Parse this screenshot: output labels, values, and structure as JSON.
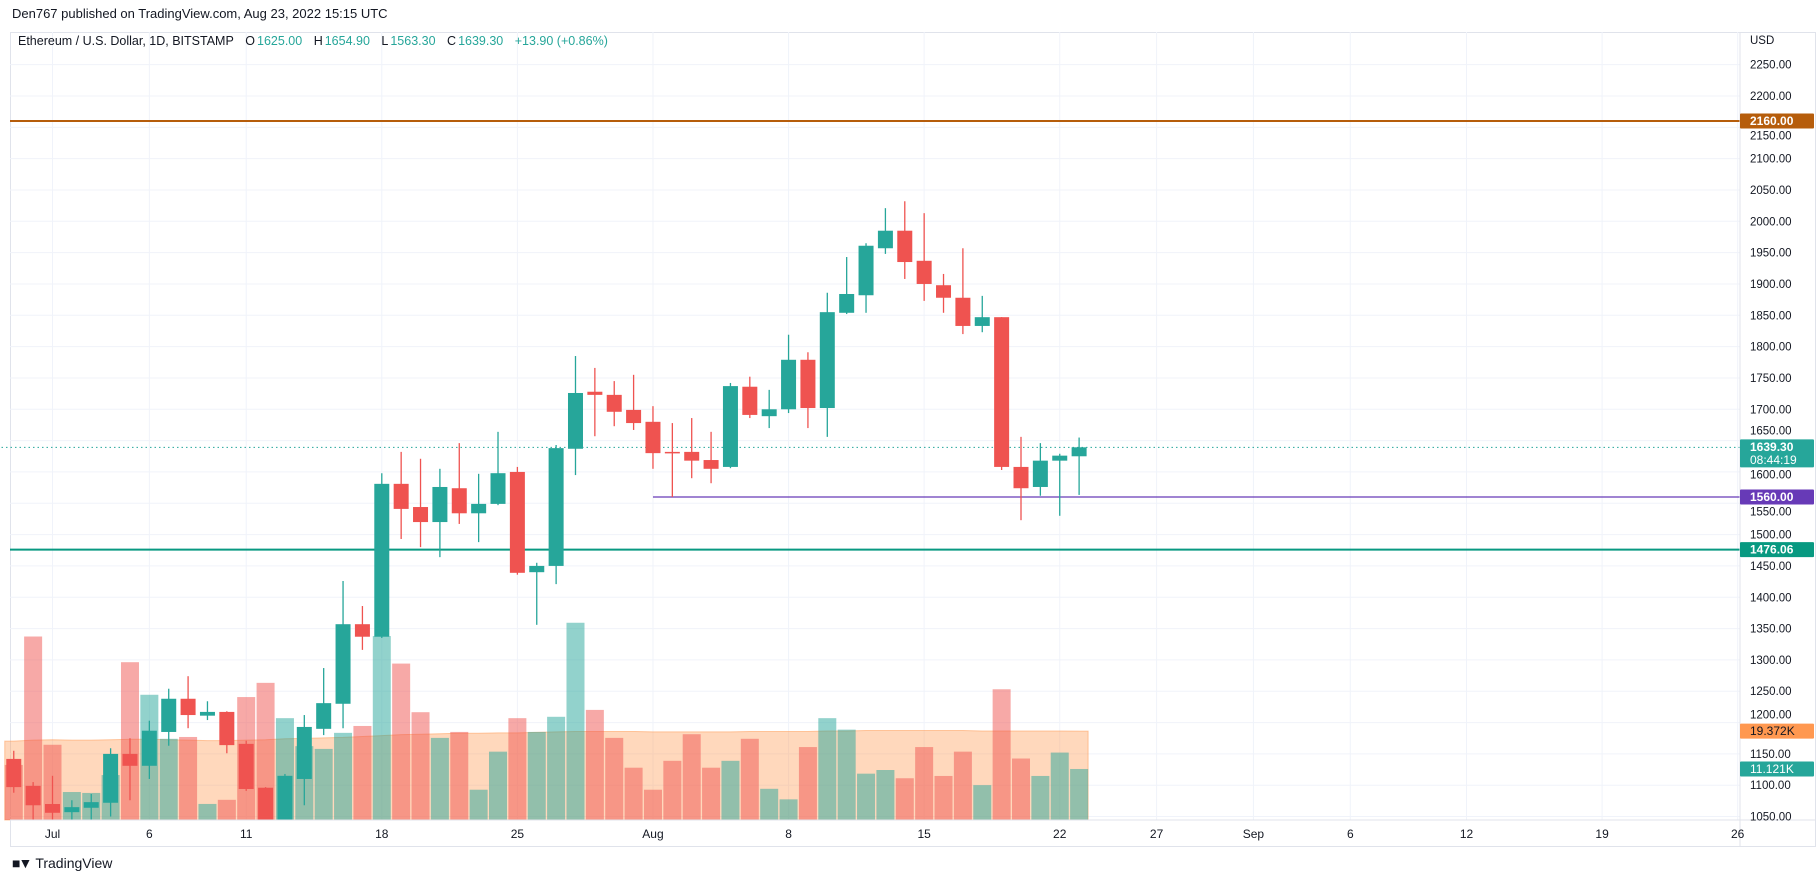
{
  "header": {
    "publisher": "Den767 published on TradingView.com, Aug 23, 2022 15:15 UTC"
  },
  "legend": {
    "symbol": "Ethereum / U.S. Dollar, 1D, BITSTAMP",
    "o_label": "O",
    "o": "1625.00",
    "h_label": "H",
    "h": "1654.90",
    "l_label": "L",
    "l": "1563.30",
    "c_label": "C",
    "c": "1639.30",
    "change": "+13.90 (+0.86%)"
  },
  "axis": {
    "currency": "USD"
  },
  "footer": {
    "brand": "TradingView"
  },
  "colors": {
    "up": "#26a69a",
    "down": "#ef5350",
    "level_2160": "#b65d0b",
    "level_1560": "#673ab7",
    "level_1476": "#089981",
    "volume_ma": "#ff9850"
  },
  "price_labels": [
    {
      "value": 2160.0,
      "text": "2160.00",
      "color": "#b65d0b"
    },
    {
      "value": 1639.3,
      "text": "1639.30",
      "sub": "08:44:19",
      "color": "#26a69a"
    },
    {
      "value": 1560.0,
      "text": "1560.00",
      "color": "#673ab7"
    },
    {
      "value": 1476.06,
      "text": "1476.06",
      "color": "#089981"
    }
  ],
  "volume_labels": [
    {
      "value": 19.372,
      "text": "19.372K",
      "color": "#ff9850"
    },
    {
      "value": 11.121,
      "text": "11.121K",
      "color": "#26a69a"
    }
  ],
  "chart_data": {
    "type": "bar",
    "style": "candlestick",
    "title": "Ethereum / U.S. Dollar, 1D, BITSTAMP",
    "ylabel": "USD",
    "ylim": [
      1030,
      2290
    ],
    "yticks": [
      "2250.00",
      "2200.00",
      "2150.00",
      "2100.00",
      "2050.00",
      "2000.00",
      "1950.00",
      "1900.00",
      "1850.00",
      "1800.00",
      "1750.00",
      "1700.00",
      "1650.00",
      "1600.00",
      "1550.00",
      "1500.00",
      "1450.00",
      "1400.00",
      "1350.00",
      "1300.00",
      "1250.00",
      "1200.00",
      "1150.00",
      "1100.00",
      "1050.00"
    ],
    "xticks": [
      {
        "day": 0,
        "label": "Jul"
      },
      {
        "day": 5,
        "label": "6"
      },
      {
        "day": 10,
        "label": "11"
      },
      {
        "day": 17,
        "label": "18"
      },
      {
        "day": 24,
        "label": "25"
      },
      {
        "day": 31,
        "label": "Aug"
      },
      {
        "day": 38,
        "label": "8"
      },
      {
        "day": 45,
        "label": "15"
      },
      {
        "day": 52,
        "label": "22"
      },
      {
        "day": 57,
        "label": "27"
      },
      {
        "day": 62,
        "label": "Sep"
      },
      {
        "day": 67,
        "label": "6"
      },
      {
        "day": 73,
        "label": "12"
      },
      {
        "day": 80,
        "label": "19"
      },
      {
        "day": 87,
        "label": "26"
      }
    ],
    "horizontal_levels": [
      {
        "price": 2160.0,
        "from_day": null
      },
      {
        "price": 1560.0,
        "from_day": 31
      },
      {
        "price": 1476.06,
        "from_day": null
      }
    ],
    "last_price": 1639.3,
    "start_day": -2,
    "ohlc": [
      [
        1142,
        1155,
        1088,
        1097
      ],
      [
        1099,
        1105,
        1020,
        1068
      ],
      [
        1070,
        1115,
        1010,
        1056
      ],
      [
        1057,
        1076,
        1030,
        1065
      ],
      [
        1064,
        1086,
        1040,
        1073
      ],
      [
        1072,
        1159,
        1050,
        1150
      ],
      [
        1150,
        1175,
        1076,
        1131
      ],
      [
        1131,
        1203,
        1110,
        1187
      ],
      [
        1185,
        1254,
        1163,
        1238
      ],
      [
        1238,
        1274,
        1191,
        1212
      ],
      [
        1211,
        1234,
        1204,
        1217
      ],
      [
        1217,
        1218,
        1151,
        1164
      ],
      [
        1166,
        1171,
        1091,
        1094
      ],
      [
        1096,
        1097,
        1030,
        1038
      ],
      [
        1038,
        1118,
        1005,
        1115
      ],
      [
        1110,
        1212,
        1068,
        1193
      ],
      [
        1190,
        1287,
        1180,
        1231
      ],
      [
        1230,
        1426,
        1191,
        1357
      ],
      [
        1357,
        1386,
        1316,
        1337
      ],
      [
        1337,
        1598,
        1335,
        1581
      ],
      [
        1581,
        1632,
        1493,
        1541
      ],
      [
        1544,
        1621,
        1480,
        1520
      ],
      [
        1520,
        1605,
        1464,
        1576
      ],
      [
        1574,
        1646,
        1517,
        1534
      ],
      [
        1534,
        1597,
        1488,
        1549
      ],
      [
        1549,
        1664,
        1547,
        1598
      ],
      [
        1600,
        1608,
        1436,
        1439
      ],
      [
        1440,
        1455,
        1356,
        1450
      ],
      [
        1450,
        1643,
        1421,
        1638
      ],
      [
        1637,
        1785,
        1595,
        1726
      ],
      [
        1728,
        1766,
        1657,
        1723
      ],
      [
        1723,
        1745,
        1673,
        1696
      ],
      [
        1699,
        1755,
        1667,
        1678
      ],
      [
        1680,
        1705,
        1605,
        1630
      ],
      [
        1632,
        1678,
        1560,
        1630
      ],
      [
        1632,
        1686,
        1590,
        1618
      ],
      [
        1619,
        1664,
        1582,
        1605
      ],
      [
        1608,
        1742,
        1606,
        1737
      ],
      [
        1736,
        1752,
        1686,
        1691
      ],
      [
        1689,
        1731,
        1670,
        1700
      ],
      [
        1700,
        1819,
        1694,
        1779
      ],
      [
        1779,
        1791,
        1670,
        1702
      ],
      [
        1702,
        1886,
        1656,
        1855
      ],
      [
        1854,
        1943,
        1852,
        1884
      ],
      [
        1882,
        1965,
        1854,
        1961
      ],
      [
        1957,
        2021,
        1948,
        1985
      ],
      [
        1985,
        2032,
        1908,
        1935
      ],
      [
        1937,
        2013,
        1873,
        1900
      ],
      [
        1898,
        1916,
        1854,
        1878
      ],
      [
        1878,
        1957,
        1820,
        1833
      ],
      [
        1833,
        1881,
        1823,
        1847
      ],
      [
        1847,
        1847,
        1603,
        1608
      ],
      [
        1608,
        1656,
        1523,
        1574
      ],
      [
        1576,
        1646,
        1562,
        1618
      ],
      [
        1618,
        1629,
        1530,
        1626
      ],
      [
        1625,
        1654.9,
        1563.3,
        1639.3
      ]
    ],
    "volume_k": [
      12.0,
      40.0,
      16.4,
      6.1,
      5.9,
      9.8,
      34.4,
      27.3,
      17.7,
      18.1,
      3.5,
      4.4,
      26.8,
      29.9,
      22.2,
      16.1,
      15.5,
      19.0,
      20.5,
      40.1,
      34.1,
      23.5,
      17.9,
      19.2,
      6.6,
      14.9,
      22.2,
      19.2,
      22.5,
      43.0,
      24.0,
      17.9,
      11.4,
      6.6,
      12.9,
      18.7,
      11.4,
      12.9,
      17.7,
      6.8,
      4.5,
      15.9,
      22.2,
      19.7,
      10.1,
      10.9,
      9.1,
      15.9,
      9.6,
      14.9,
      7.6,
      28.5,
      13.4,
      9.6,
      14.7,
      11.121
    ],
    "volume_ma_k": [
      17.2,
      17.4,
      17.5,
      17.4,
      17.4,
      17.5,
      17.6,
      17.6,
      17.5,
      17.4,
      17.3,
      17.3,
      17.4,
      17.5,
      17.7,
      17.8,
      17.9,
      18.0,
      18.2,
      18.4,
      18.6,
      18.7,
      18.8,
      18.9,
      18.9,
      19.0,
      19.0,
      19.1,
      19.2,
      19.3,
      19.3,
      19.3,
      19.3,
      19.2,
      19.2,
      19.2,
      19.2,
      19.2,
      19.3,
      19.3,
      19.3,
      19.3,
      19.4,
      19.4,
      19.5,
      19.5,
      19.5,
      19.5,
      19.5,
      19.5,
      19.4,
      19.4,
      19.4,
      19.4,
      19.4,
      19.372
    ]
  }
}
